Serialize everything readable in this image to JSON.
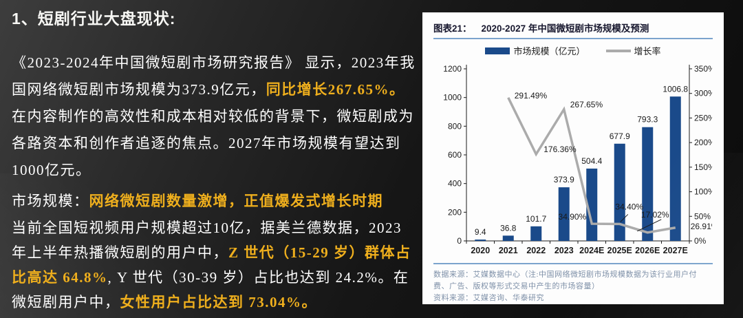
{
  "slide": {
    "heading": "1、短剧行业大盘现状:",
    "paragraphs": [
      {
        "name": "intro-paragraph",
        "segments": [
          {
            "text": "《2023-2024年中国微短剧市场研究报告》 显示，2023年我国网络微短剧市场规模为373.9亿元，",
            "highlight": false
          },
          {
            "text": "同比增长267.65%。",
            "highlight": true
          },
          {
            "text": "在内容制作的高效性和成本相对较低的背景下，微短剧成为各路资本和创作者追逐的焦点。2027年市场规模有望达到1000亿元。",
            "highlight": false
          }
        ]
      },
      {
        "name": "market-scale-paragraph",
        "segments": [
          {
            "text": "市场规模：",
            "highlight": false
          },
          {
            "text": "网络微短剧数量激增，正值爆发式增长时期",
            "highlight": true
          }
        ]
      },
      {
        "name": "user-structure-paragraph",
        "segments": [
          {
            "text": "当前全国短视频用户规模超过10亿，据美兰德数据，2023年上半年热播微短剧的用户中，",
            "highlight": false
          },
          {
            "text": "Z 世代（15-29 岁）群体占比高达 64.8%",
            "highlight": true
          },
          {
            "text": ", Y 世代（30-39 岁）占比也达到 24.2%。在微短剧用户中，",
            "highlight": false
          },
          {
            "text": "女性用户占比达到 73.04%。",
            "highlight": true
          }
        ]
      }
    ]
  },
  "figure": {
    "label": "图表21：",
    "title": "2020-2027 年中国微短剧市场规模及预测",
    "sources": [
      "数据来源：艾媒数据中心（注:中国网络微短剧市场规模数据为该行业用户付费、广告、版权等形式交易中产生的市场容量）",
      "资料来源：艾媒咨询、华泰研究"
    ]
  },
  "chart_data": {
    "type": "bar",
    "title": "2020-2027 年中国微短剧市场规模及预测",
    "categories": [
      "2020",
      "2021",
      "2022",
      "2023",
      "2024E",
      "2025E",
      "2026E",
      "2027E"
    ],
    "series": [
      {
        "name": "市场规模（亿元）",
        "type": "bar",
        "axis": "left",
        "color": "#1A4A8A",
        "values": [
          9.4,
          36.8,
          101.7,
          373.9,
          504.4,
          677.9,
          793.3,
          1006.8
        ]
      },
      {
        "name": "增长率",
        "type": "line",
        "axis": "right",
        "color": "#ABABAB",
        "values": [
          null,
          291.49,
          176.36,
          267.65,
          34.9,
          34.4,
          17.02,
          26.91
        ]
      }
    ],
    "left_axis": {
      "min": 0,
      "max": 1200,
      "step": 200
    },
    "right_axis": {
      "min": 0,
      "max": 350,
      "step": 50,
      "suffix": "%"
    },
    "legend_position": "top",
    "grid": false
  },
  "colors": {
    "highlight_text": "#EFAF1D",
    "body_text": "#FFFFFF",
    "bar": "#1A4A8A",
    "growth_line": "#ABABAB",
    "rule_blue": "#7BA3CD",
    "source_text": "#7E90A8"
  }
}
